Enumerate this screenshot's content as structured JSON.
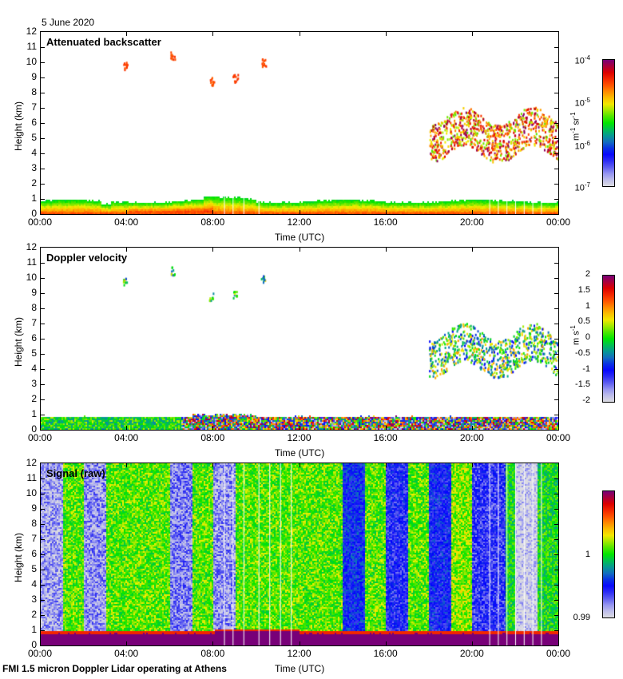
{
  "figure": {
    "date": "5 June 2020",
    "caption": "FMI 1.5 micron Doppler Lidar operating at Athens"
  },
  "chart_data": [
    {
      "type": "heatmap",
      "title": "Attenuated backscatter",
      "xlabel": "Time (UTC)",
      "ylabel": "Height (km)",
      "x_ticks": [
        "00:00",
        "04:00",
        "08:00",
        "12:00",
        "16:00",
        "20:00",
        "00:00"
      ],
      "y_ticks": [
        "0",
        "1",
        "2",
        "3",
        "4",
        "5",
        "6",
        "7",
        "8",
        "9",
        "10",
        "11",
        "12"
      ],
      "xlim_hours": [
        0,
        24
      ],
      "ylim_km": [
        0,
        12
      ],
      "colorbar": {
        "scale": "log",
        "range": [
          1e-07,
          0.0001
        ],
        "ticks": [
          "10-7",
          "10-6",
          "10-5",
          "10-4"
        ],
        "unit": "m-1 sr-1"
      },
      "features": [
        {
          "desc": "boundary layer aerosol",
          "time_range_h": [
            0,
            24
          ],
          "top_km": 1.0
        },
        {
          "desc": "high cloud fragments",
          "time_range_h": [
            3.8,
            10.2
          ],
          "height_km": [
            8.3,
            10.7
          ]
        },
        {
          "desc": "mid/high cloud",
          "time_range_h": [
            18,
            24
          ],
          "height_km": [
            3,
            9.2
          ]
        }
      ]
    },
    {
      "type": "heatmap",
      "title": "Doppler velocity",
      "xlabel": "Time (UTC)",
      "ylabel": "Height (km)",
      "x_ticks": [
        "00:00",
        "04:00",
        "08:00",
        "12:00",
        "16:00",
        "20:00",
        "00:00"
      ],
      "y_ticks": [
        "0",
        "1",
        "2",
        "3",
        "4",
        "5",
        "6",
        "7",
        "8",
        "9",
        "10",
        "11",
        "12"
      ],
      "xlim_hours": [
        0,
        24
      ],
      "ylim_km": [
        0,
        12
      ],
      "colorbar": {
        "scale": "linear",
        "range": [
          -2,
          2
        ],
        "ticks": [
          "-2",
          "-1.5",
          "-1",
          "-0.5",
          "0",
          "0.5",
          "1",
          "1.5",
          "2"
        ],
        "unit": "m s-1"
      }
    },
    {
      "type": "heatmap",
      "title": "Signal (raw)",
      "xlabel": "Time (UTC)",
      "ylabel": "Height (km)",
      "x_ticks": [
        "00:00",
        "04:00",
        "08:00",
        "12:00",
        "16:00",
        "20:00",
        "00:00"
      ],
      "y_ticks": [
        "0",
        "1",
        "2",
        "3",
        "4",
        "5",
        "6",
        "7",
        "8",
        "9",
        "10",
        "11",
        "12"
      ],
      "xlim_hours": [
        0,
        24
      ],
      "ylim_km": [
        0,
        12
      ],
      "colorbar": {
        "scale": "linear",
        "range": [
          0.99,
          1.01
        ],
        "ticks": [
          "0.99",
          "1"
        ],
        "unit": ""
      }
    }
  ],
  "labels": {
    "ylabel": "Height (km)",
    "xlabel": "Time (UTC)",
    "cb1_unit_base1": "m",
    "cb1_unit_exp1": "-1",
    "cb1_unit_base2": " sr",
    "cb1_unit_exp2": "-1",
    "cb2_unit_base": "m s",
    "cb2_unit_exp": "-1",
    "cb1_ticks": [
      {
        "base": "10",
        "exp": "-4"
      },
      {
        "base": "10",
        "exp": "-5"
      },
      {
        "base": "10",
        "exp": "-6"
      },
      {
        "base": "10",
        "exp": "-7"
      }
    ]
  }
}
